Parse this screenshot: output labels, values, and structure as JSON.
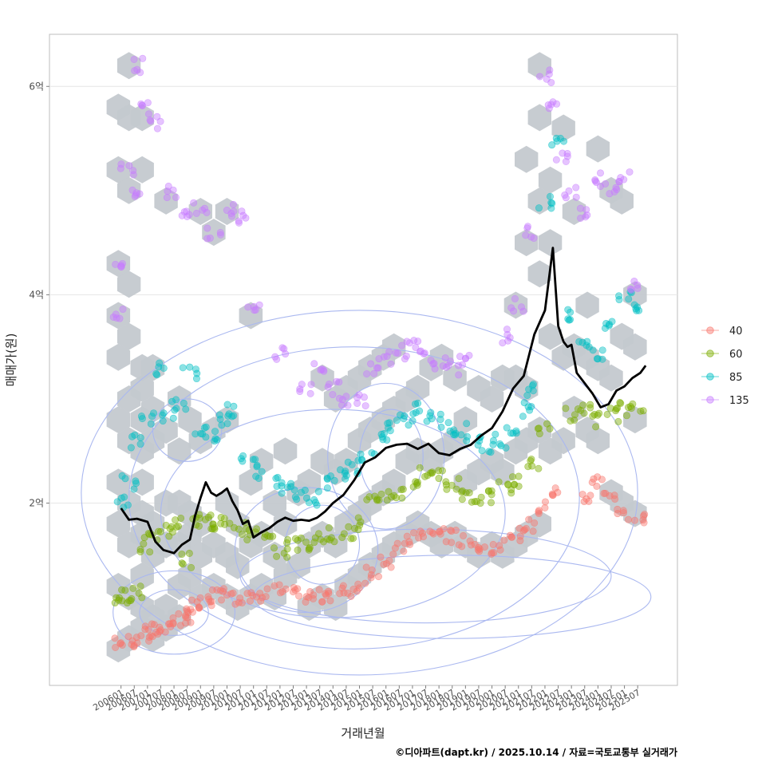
{
  "chart_data": {
    "type": "scatter",
    "title": "",
    "xlabel": "거래년월",
    "ylabel": "매매가(원)",
    "caption": "©디아파트(dapt.kr) / 2025.10.14 / 자료=국토교통부 실거래가",
    "ylim": [
      0.25,
      6.5
    ],
    "y_ticks": [
      {
        "value": 2,
        "label": "2억"
      },
      {
        "value": 4,
        "label": "4억"
      },
      {
        "value": 6,
        "label": "6억"
      }
    ],
    "x_range": [
      2003.3,
      2027.0
    ],
    "x_ticks": [
      "200601",
      "200607",
      "200701",
      "200707",
      "200801",
      "200807",
      "200901",
      "200907",
      "201001",
      "201007",
      "201101",
      "201107",
      "201201",
      "201207",
      "201301",
      "201307",
      "201401",
      "201407",
      "201501",
      "201507",
      "201601",
      "201607",
      "201701",
      "201707",
      "201801",
      "201807",
      "201901",
      "201907",
      "202001",
      "202007",
      "202101",
      "202107",
      "202201",
      "202207",
      "202301",
      "202307",
      "202401",
      "202407",
      "202501",
      "202507"
    ],
    "legend": {
      "position": "right",
      "entries": [
        {
          "label": "40",
          "color": "#F8766D"
        },
        {
          "label": "60",
          "color": "#7CAE00"
        },
        {
          "label": "85",
          "color": "#00BFC4"
        },
        {
          "label": "135",
          "color": "#C77CFF"
        }
      ]
    },
    "colors": {
      "hex": "#c4c9cf",
      "contour": "#aab8f0",
      "trend": "#000000"
    },
    "trend_line": {
      "name": "median price",
      "x": [
        2006.0,
        2006.3,
        2006.6,
        2007.0,
        2007.3,
        2007.6,
        2008.0,
        2008.3,
        2008.6,
        2008.8,
        2009.0,
        2009.2,
        2009.4,
        2009.6,
        2009.8,
        2010.0,
        2010.2,
        2010.4,
        2010.6,
        2010.8,
        2011.0,
        2011.3,
        2011.6,
        2011.9,
        2012.2,
        2012.5,
        2012.8,
        2013.1,
        2013.4,
        2013.7,
        2014.0,
        2014.4,
        2014.8,
        2015.2,
        2015.6,
        2016.0,
        2016.4,
        2016.8,
        2017.2,
        2017.6,
        2018.0,
        2018.4,
        2018.8,
        2019.2,
        2019.6,
        2020.0,
        2020.4,
        2020.8,
        2021.2,
        2021.6,
        2022.0,
        2022.3,
        2022.5,
        2022.7,
        2022.85,
        2023.0,
        2023.2,
        2023.5,
        2023.8,
        2024.1,
        2024.4,
        2024.7,
        2025.0,
        2025.3,
        2025.6,
        2025.8
      ],
      "y": [
        1.95,
        1.84,
        1.85,
        1.82,
        1.63,
        1.55,
        1.52,
        1.6,
        1.65,
        1.88,
        2.05,
        2.2,
        2.1,
        2.07,
        2.1,
        2.14,
        2.02,
        1.93,
        1.8,
        1.83,
        1.67,
        1.72,
        1.76,
        1.82,
        1.86,
        1.83,
        1.84,
        1.83,
        1.86,
        1.92,
        2.0,
        2.08,
        2.22,
        2.39,
        2.44,
        2.53,
        2.56,
        2.57,
        2.52,
        2.57,
        2.48,
        2.46,
        2.52,
        2.56,
        2.65,
        2.72,
        2.88,
        3.1,
        3.22,
        3.62,
        3.85,
        4.45,
        3.7,
        3.55,
        3.5,
        3.52,
        3.25,
        3.15,
        3.05,
        2.92,
        2.95,
        3.08,
        3.12,
        3.2,
        3.25,
        3.32
      ]
    },
    "series": [
      {
        "name": "40",
        "color": "#F8766D",
        "x": [
          2006.0,
          2006.4,
          2006.8,
          2007.1,
          2007.4,
          2007.7,
          2008.0,
          2008.3,
          2008.6,
          2008.9,
          2009.2,
          2009.6,
          2010.0,
          2010.5,
          2011.0,
          2011.5,
          2012.0,
          2012.5,
          2013.0,
          2013.5,
          2014.0,
          2014.5,
          2015.0,
          2015.5,
          2016.0,
          2016.5,
          2017.0,
          2017.5,
          2018.0,
          2018.5,
          2019.0,
          2019.5,
          2020.0,
          2020.5,
          2021.0,
          2021.5,
          2022.0,
          2022.5,
          2023.5,
          2024.0,
          2024.5,
          2025.0,
          2025.5
        ],
        "y": [
          0.65,
          0.68,
          0.72,
          0.75,
          0.78,
          0.82,
          0.85,
          0.9,
          0.92,
          1.0,
          1.05,
          1.12,
          1.18,
          1.1,
          1.08,
          1.12,
          1.15,
          1.12,
          1.11,
          1.1,
          1.13,
          1.15,
          1.22,
          1.35,
          1.45,
          1.55,
          1.65,
          1.7,
          1.72,
          1.68,
          1.62,
          1.6,
          1.58,
          1.62,
          1.7,
          1.78,
          1.95,
          2.1,
          2.05,
          2.2,
          2.1,
          1.9,
          1.85
        ]
      },
      {
        "name": "60",
        "color": "#7CAE00",
        "x": [
          2006.0,
          2006.3,
          2006.6,
          2007.0,
          2007.3,
          2007.7,
          2008.0,
          2008.4,
          2008.8,
          2009.2,
          2009.6,
          2010.0,
          2010.5,
          2011.0,
          2011.5,
          2012.0,
          2012.5,
          2013.0,
          2013.5,
          2014.0,
          2014.5,
          2015.0,
          2015.5,
          2016.0,
          2016.5,
          2017.0,
          2017.5,
          2018.0,
          2018.5,
          2019.0,
          2019.5,
          2020.0,
          2020.5,
          2021.0,
          2021.5,
          2022.0,
          2023.0,
          2023.5,
          2024.0,
          2024.5,
          2025.0,
          2025.5
        ],
        "y": [
          1.05,
          1.1,
          1.15,
          1.6,
          1.7,
          1.75,
          1.8,
          1.45,
          1.82,
          1.85,
          1.8,
          1.85,
          1.75,
          1.7,
          1.65,
          1.55,
          1.6,
          1.62,
          1.65,
          1.7,
          1.72,
          1.8,
          2.0,
          2.05,
          2.1,
          2.2,
          2.3,
          2.25,
          2.2,
          2.1,
          2.05,
          2.05,
          2.15,
          2.2,
          2.4,
          2.7,
          2.85,
          2.9,
          2.8,
          2.85,
          2.9,
          2.95
        ]
      },
      {
        "name": "85",
        "color": "#00BFC4",
        "x": [
          2006.0,
          2006.3,
          2006.6,
          2007.0,
          2007.4,
          2007.8,
          2008.2,
          2008.6,
          2009.0,
          2009.4,
          2009.8,
          2010.2,
          2010.8,
          2011.3,
          2011.8,
          2012.3,
          2012.8,
          2013.3,
          2013.8,
          2014.3,
          2014.8,
          2015.3,
          2015.8,
          2016.3,
          2016.8,
          2017.3,
          2017.8,
          2018.3,
          2018.8,
          2019.3,
          2019.8,
          2020.3,
          2020.8,
          2021.3,
          2021.6,
          2022.0,
          2022.5,
          2023.0,
          2023.5,
          2024.0,
          2024.5,
          2025.0,
          2025.5
        ],
        "y": [
          2.0,
          2.2,
          2.6,
          2.8,
          3.3,
          2.85,
          2.95,
          3.25,
          2.7,
          2.65,
          2.8,
          2.9,
          2.45,
          2.3,
          2.2,
          2.15,
          2.1,
          2.05,
          2.2,
          2.3,
          2.35,
          2.45,
          2.6,
          2.75,
          2.8,
          2.9,
          2.85,
          2.75,
          2.7,
          2.6,
          2.55,
          2.6,
          2.7,
          2.9,
          3.1,
          4.9,
          5.5,
          3.8,
          3.55,
          3.4,
          3.7,
          4.0,
          3.9
        ]
      },
      {
        "name": "135",
        "color": "#C77CFF",
        "x": [
          2005.8,
          2006.0,
          2006.2,
          2006.5,
          2006.7,
          2007.0,
          2007.3,
          2007.8,
          2008.5,
          2009.0,
          2009.5,
          2010.0,
          2010.5,
          2011.0,
          2012.0,
          2013.0,
          2013.5,
          2014.0,
          2014.5,
          2015.0,
          2015.5,
          2016.0,
          2016.5,
          2017.0,
          2017.5,
          2018.0,
          2018.5,
          2019.0,
          2020.5,
          2021.0,
          2021.5,
          2022.0,
          2022.3,
          2022.6,
          2023.0,
          2023.5,
          2024.0,
          2024.5,
          2025.0,
          2025.5
        ],
        "y": [
          3.8,
          4.3,
          5.2,
          5.0,
          6.2,
          5.8,
          5.65,
          5.0,
          4.8,
          4.85,
          4.6,
          4.8,
          4.75,
          3.85,
          3.45,
          3.1,
          3.3,
          3.1,
          3.0,
          3.0,
          3.3,
          3.4,
          3.45,
          3.5,
          3.4,
          3.35,
          3.3,
          3.35,
          3.6,
          3.9,
          4.6,
          6.1,
          5.8,
          5.3,
          5.0,
          4.8,
          5.1,
          5.0,
          5.15,
          4.1
        ]
      }
    ],
    "hexbins": {
      "x": [
        2005.9,
        2005.9,
        2005.9,
        2005.9,
        2005.9,
        2005.9,
        2005.9,
        2005.9,
        2005.9,
        2005.9,
        2006.3,
        2006.3,
        2006.3,
        2006.3,
        2006.3,
        2006.3,
        2006.3,
        2006.3,
        2006.3,
        2006.3,
        2006.3,
        2006.8,
        2006.8,
        2006.8,
        2006.8,
        2006.8,
        2006.8,
        2006.8,
        2006.8,
        2006.8,
        2006.8,
        2006.8,
        2006.8,
        2007.2,
        2007.2,
        2007.2,
        2007.2,
        2007.2,
        2007.2,
        2007.2,
        2007.7,
        2007.7,
        2007.7,
        2007.7,
        2007.7,
        2007.7,
        2008.2,
        2008.2,
        2008.2,
        2008.2,
        2008.2,
        2008.2,
        2008.6,
        2008.6,
        2008.6,
        2008.6,
        2009.0,
        2009.0,
        2009.0,
        2009.0,
        2009.0,
        2009.5,
        2009.5,
        2009.5,
        2009.5,
        2010.0,
        2010.0,
        2010.0,
        2010.0,
        2010.0,
        2010.4,
        2010.4,
        2010.4,
        2010.9,
        2010.9,
        2010.9,
        2010.9,
        2011.3,
        2011.3,
        2011.3,
        2011.8,
        2011.8,
        2011.8,
        2012.2,
        2012.2,
        2012.2,
        2012.7,
        2012.7,
        2013.1,
        2013.1,
        2013.1,
        2013.6,
        2013.6,
        2013.6,
        2013.6,
        2014.1,
        2014.1,
        2014.1,
        2014.1,
        2014.5,
        2014.5,
        2014.5,
        2014.5,
        2015.0,
        2015.0,
        2015.0,
        2015.0,
        2015.4,
        2015.4,
        2015.4,
        2015.4,
        2015.9,
        2015.9,
        2015.9,
        2015.9,
        2016.3,
        2016.3,
        2016.3,
        2016.3,
        2016.8,
        2016.8,
        2016.8,
        2017.2,
        2017.2,
        2017.2,
        2017.7,
        2017.7,
        2017.7,
        2018.1,
        2018.1,
        2018.1,
        2018.6,
        2018.6,
        2018.6,
        2019.0,
        2019.0,
        2019.0,
        2019.5,
        2019.5,
        2019.5,
        2020.0,
        2020.0,
        2020.0,
        2020.4,
        2020.4,
        2020.4,
        2020.9,
        2020.9,
        2020.9,
        2020.9,
        2021.3,
        2021.3,
        2021.3,
        2021.3,
        2021.3,
        2021.8,
        2021.8,
        2021.8,
        2021.8,
        2021.8,
        2021.8,
        2022.2,
        2022.2,
        2022.2,
        2022.2,
        2022.7,
        2022.7,
        2022.7,
        2023.1,
        2023.1,
        2023.1,
        2023.6,
        2023.6,
        2023.6,
        2024.0,
        2024.0,
        2024.0,
        2024.5,
        2024.5,
        2024.5,
        2024.9,
        2024.9,
        2024.9,
        2025.4,
        2025.4,
        2025.4,
        2025.4
      ],
      "y": [
        0.6,
        1.2,
        1.8,
        2.2,
        2.8,
        3.4,
        3.8,
        4.3,
        5.2,
        5.8,
        0.7,
        1.1,
        1.6,
        2.0,
        2.6,
        3.0,
        3.6,
        4.1,
        5.0,
        5.7,
        6.2,
        0.8,
        1.0,
        1.3,
        1.7,
        1.9,
        2.2,
        2.5,
        2.8,
        3.1,
        3.3,
        5.7,
        5.2,
        0.7,
        0.9,
        1.5,
        1.8,
        2.6,
        2.9,
        3.3,
        0.8,
        1.0,
        1.6,
        2.0,
        2.7,
        4.9,
        0.9,
        1.2,
        1.6,
        2.0,
        2.5,
        3.0,
        1.3,
        1.7,
        1.9,
        2.8,
        1.1,
        1.5,
        1.8,
        2.6,
        4.8,
        1.2,
        1.6,
        2.7,
        4.6,
        1.1,
        1.5,
        2.0,
        2.8,
        4.8,
        1.0,
        1.4,
        1.8,
        1.1,
        1.6,
        2.2,
        3.8,
        1.2,
        1.7,
        2.4,
        1.1,
        1.5,
        2.0,
        1.3,
        1.8,
        2.5,
        1.4,
        2.1,
        1.0,
        1.6,
        2.2,
        1.1,
        1.7,
        2.4,
        3.2,
        1.0,
        1.6,
        2.3,
        3.0,
        1.2,
        1.8,
        2.4,
        3.1,
        1.3,
        1.9,
        2.6,
        3.2,
        1.4,
        2.0,
        2.7,
        3.3,
        1.5,
        2.1,
        2.8,
        3.4,
        1.6,
        2.2,
        2.9,
        3.5,
        1.7,
        2.4,
        3.0,
        1.8,
        2.5,
        3.1,
        1.7,
        2.4,
        3.3,
        1.6,
        2.5,
        3.4,
        1.7,
        2.6,
        3.2,
        1.6,
        2.2,
        2.8,
        1.5,
        2.3,
        3.1,
        1.6,
        2.4,
        3.0,
        1.5,
        2.3,
        3.2,
        1.6,
        2.5,
        3.2,
        3.9,
        1.7,
        2.6,
        3.1,
        4.5,
        5.3,
        1.8,
        2.7,
        4.2,
        4.9,
        5.7,
        6.2,
        2.5,
        3.6,
        4.5,
        5.1,
        2.6,
        3.4,
        5.6,
        2.9,
        3.5,
        4.8,
        2.7,
        3.4,
        3.9,
        2.6,
        3.3,
        5.4,
        2.1,
        3.2,
        5.0,
        2.0,
        3.6,
        4.9,
        1.9,
        2.8,
        3.5,
        4.0
      ]
    },
    "contour_levels": [
      {
        "cx": 2008.0,
        "cy": 0.95,
        "rx": 1.3,
        "ry": 0.22,
        "rot": 0
      },
      {
        "cx": 2008.0,
        "cy": 0.95,
        "rx": 2.3,
        "ry": 0.4,
        "rot": 0
      },
      {
        "cx": 2013.6,
        "cy": 1.6,
        "rx": 1.4,
        "ry": 0.38,
        "rot": 0
      },
      {
        "cx": 2013.0,
        "cy": 1.55,
        "rx": 2.7,
        "ry": 0.6,
        "rot": 0
      },
      {
        "cx": 2016.2,
        "cy": 2.45,
        "rx": 1.2,
        "ry": 0.45,
        "rot": 0
      },
      {
        "cx": 2016.0,
        "cy": 2.45,
        "rx": 2.2,
        "ry": 0.7,
        "rot": 0
      },
      {
        "cx": 2008.5,
        "cy": 2.7,
        "rx": 1.3,
        "ry": 0.3,
        "rot": 0
      },
      {
        "cx": 2014.0,
        "cy": 1.9,
        "rx": 6.5,
        "ry": 1.0,
        "rot": 0
      },
      {
        "cx": 2014.8,
        "cy": 2.05,
        "rx": 8.5,
        "ry": 1.45,
        "rot": 0
      },
      {
        "cx": 2015.0,
        "cy": 2.1,
        "rx": 10.5,
        "ry": 1.75,
        "rot": 0
      },
      {
        "cx": 2017.5,
        "cy": 1.3,
        "rx": 7.0,
        "ry": 0.45,
        "rot": 0
      },
      {
        "cx": 2018.5,
        "cy": 1.1,
        "rx": 7.5,
        "ry": 0.4,
        "rot": 0
      }
    ]
  }
}
